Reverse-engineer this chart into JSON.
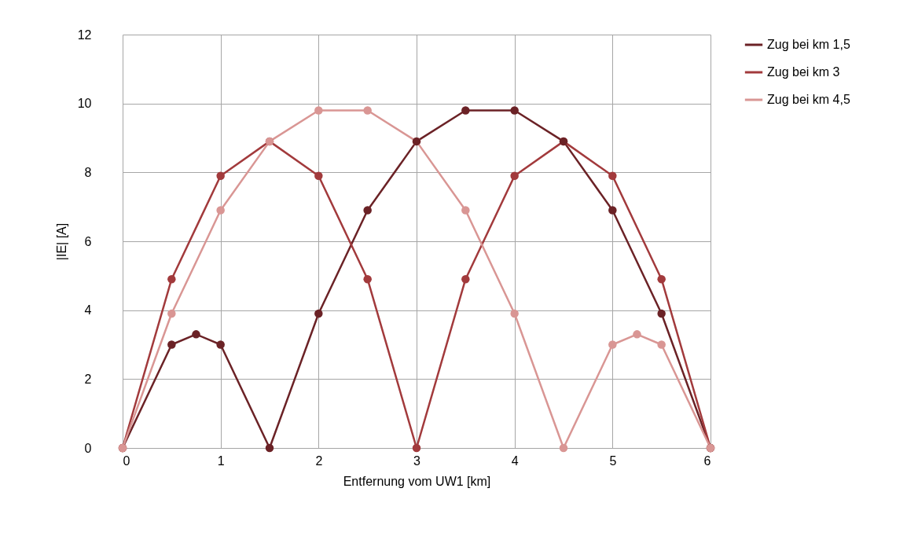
{
  "chart_data": {
    "type": "line",
    "xlabel": "Entfernung vom UW1 [km]",
    "ylabel": "|IE| [A]",
    "xlim": [
      0,
      6
    ],
    "xticks": [
      0,
      1,
      2,
      3,
      4,
      5,
      6
    ],
    "ylim": [
      0,
      12
    ],
    "yticks": [
      0,
      2,
      4,
      6,
      8,
      10,
      12
    ],
    "grid": true,
    "legend": "right",
    "marker": "circle",
    "line_style": "solid",
    "series": [
      {
        "name": "Zug bei km 1,5",
        "color": "#6b2226",
        "x": [
          0,
          0.5,
          0.75,
          1,
          1.5,
          2,
          2.5,
          3,
          3.5,
          4,
          4.5,
          5,
          5.5,
          6
        ],
        "values": [
          0,
          3.0,
          3.3,
          3.0,
          0,
          3.9,
          6.9,
          8.9,
          9.8,
          9.8,
          8.9,
          6.9,
          3.9,
          0
        ]
      },
      {
        "name": "Zug bei km 3",
        "color": "#a23a3c",
        "x": [
          0,
          0.5,
          1,
          1.5,
          2,
          2.5,
          3,
          3.5,
          4,
          4.5,
          5,
          5.5,
          6
        ],
        "values": [
          0,
          4.9,
          7.9,
          8.9,
          7.9,
          4.9,
          0,
          4.9,
          7.9,
          8.9,
          7.9,
          4.9,
          0
        ]
      },
      {
        "name": "Zug bei km 4,5",
        "color": "#d99694",
        "x": [
          0,
          0.5,
          1,
          1.5,
          2,
          2.5,
          3,
          3.5,
          4,
          4.5,
          5,
          5.25,
          5.5,
          6
        ],
        "values": [
          0,
          3.9,
          6.9,
          8.9,
          9.8,
          9.8,
          8.9,
          6.9,
          3.9,
          0,
          3.0,
          3.3,
          3.0,
          0
        ]
      }
    ]
  }
}
